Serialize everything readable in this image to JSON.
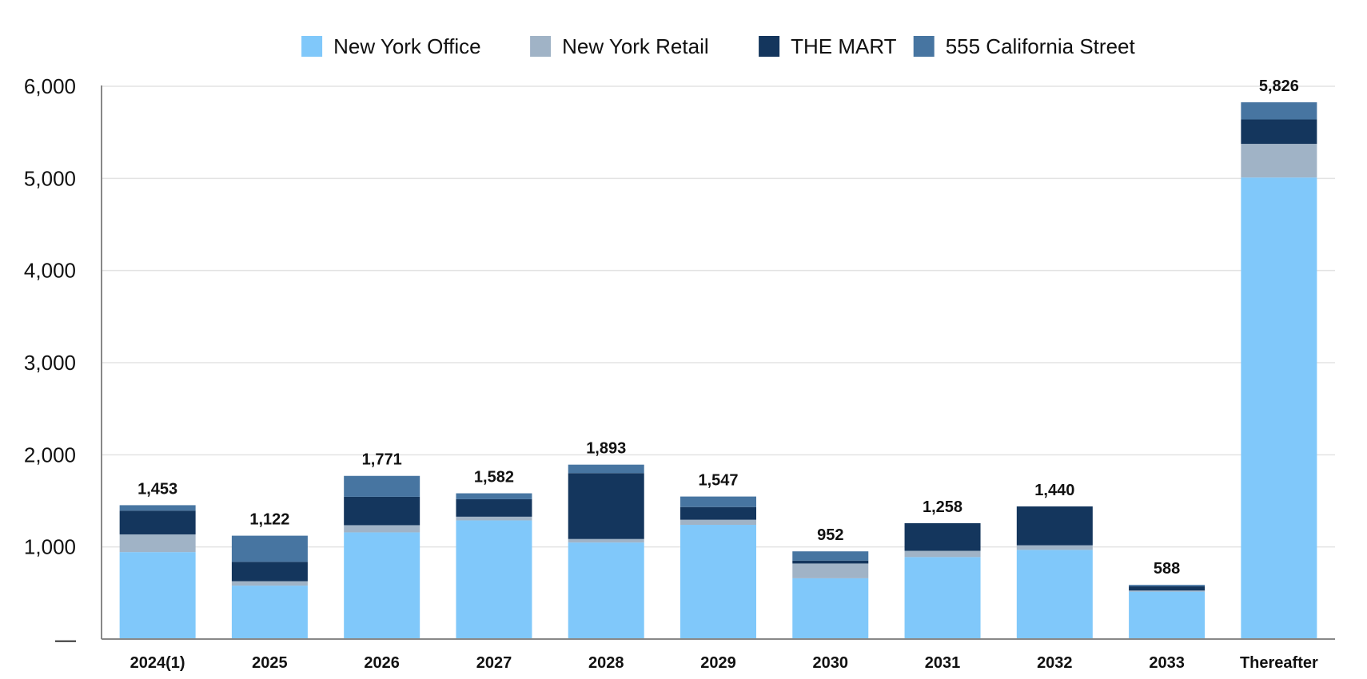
{
  "chart_data": {
    "type": "bar",
    "stacked": true,
    "categories": [
      "2024(1)",
      "2025",
      "2026",
      "2027",
      "2028",
      "2029",
      "2030",
      "2031",
      "2032",
      "2033",
      "Thereafter"
    ],
    "series": [
      {
        "name": "New York Office",
        "color": "#80C8FA",
        "values": [
          944,
          580,
          1158,
          1288,
          1048,
          1240,
          660,
          890,
          968,
          515,
          5010
        ]
      },
      {
        "name": "New York Retail",
        "color": "#A0B3C6",
        "values": [
          192,
          48,
          78,
          40,
          38,
          55,
          160,
          68,
          50,
          12,
          365
        ]
      },
      {
        "name": "THE MART",
        "color": "#14365D",
        "values": [
          258,
          210,
          308,
          190,
          715,
          138,
          32,
          300,
          422,
          45,
          265
        ]
      },
      {
        "name": "555 California Street",
        "color": "#4775A1",
        "values": [
          59,
          284,
          227,
          64,
          92,
          114,
          100,
          0,
          0,
          16,
          186
        ]
      }
    ],
    "totals": [
      "1,453",
      "1,122",
      "1,771",
      "1,582",
      "1,893",
      "1,547",
      "952",
      "1,258",
      "1,440",
      "588",
      "5,826"
    ],
    "title": "",
    "xlabel": "",
    "ylabel": "",
    "ylim": [
      0,
      6000
    ],
    "yticks": [
      0,
      1000,
      2000,
      3000,
      4000,
      5000,
      6000
    ],
    "ytick_labels": [
      "—",
      "1,000",
      "2,000",
      "3,000",
      "4,000",
      "5,000",
      "6,000"
    ],
    "grid": true,
    "legend_position": "top-center"
  }
}
